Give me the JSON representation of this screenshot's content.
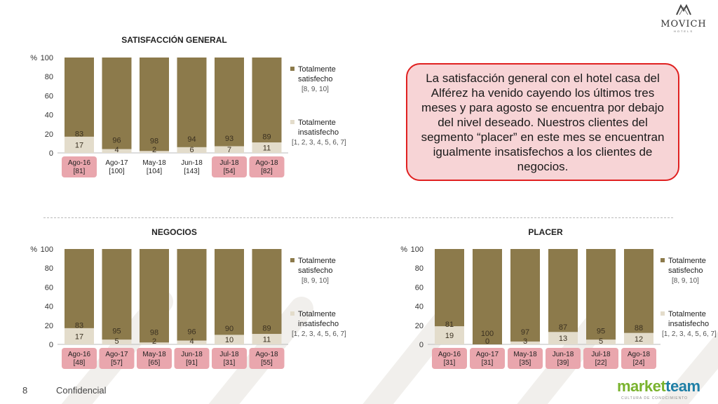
{
  "brand": {
    "logo_text": "MOVICH",
    "logo_sub": "HOTELS"
  },
  "callout_text": "La satisfacción general con el hotel casa del Alférez ha venido cayendo los últimos tres meses y para agosto se encuentra por debajo del nivel deseado. Nuestros clientes del segmento “placer” en este mes se encuentran igualmente insatisfechos a los clientes de negocios.",
  "footer": {
    "page_number": "8",
    "confidential": "Confidencial",
    "partner_a": "market",
    "partner_b": "team",
    "partner_sub": "CULTURA DE CONOCIMIENTO"
  },
  "colors": {
    "satisfied": "#8c7a4b",
    "unsatisfied": "#e3dccb",
    "highlight": "#e9a6ad",
    "callout_border": "#e02020",
    "callout_fill": "#f7d4d6"
  },
  "chart_data": [
    {
      "type": "bar",
      "stacked": true,
      "title": "SATISFACCIÓN GENERAL",
      "ylabel": "%",
      "ylim": [
        0,
        100
      ],
      "yticks": [
        "0",
        "20",
        "40",
        "60",
        "80",
        "100"
      ],
      "categories": [
        "Ago-16",
        "Ago-17",
        "May-18",
        "Jun-18",
        "Jul-18",
        "Ago-18"
      ],
      "sample_sizes": [
        "[81]",
        "[100]",
        "[104]",
        "[143]",
        "[54]",
        "[82]"
      ],
      "highlighted": [
        0,
        4,
        5
      ],
      "series": [
        {
          "name": "Totalmente insatisfecho",
          "legend_lines": [
            "Totalmente",
            "insatisfecho"
          ],
          "range": "[1, 2, 3, 4, 5, 6, 7]",
          "values": [
            17,
            4,
            2,
            6,
            7,
            11
          ]
        },
        {
          "name": "Totalmente satisfecho",
          "legend_lines": [
            "Totalmente",
            "satisfecho"
          ],
          "range": "[8, 9, 10]",
          "values": [
            83,
            96,
            98,
            94,
            93,
            89
          ]
        }
      ]
    },
    {
      "type": "bar",
      "stacked": true,
      "title": "NEGOCIOS",
      "ylabel": "%",
      "ylim": [
        0,
        100
      ],
      "yticks": [
        "0",
        "20",
        "40",
        "60",
        "80",
        "100"
      ],
      "categories": [
        "Ago-16",
        "Ago-17",
        "May-18",
        "Jun-18",
        "Jul-18",
        "Ago-18"
      ],
      "sample_sizes": [
        "[48]",
        "[57]",
        "[65]",
        "[91]",
        "[31]",
        "[55]"
      ],
      "highlighted": [
        0,
        1,
        2,
        3,
        4,
        5
      ],
      "series": [
        {
          "name": "Totalmente insatisfecho",
          "legend_lines": [
            "Totalmente",
            "insatisfecho"
          ],
          "range": "[1, 2, 3, 4, 5, 6, 7]",
          "values": [
            17,
            5,
            2,
            4,
            10,
            11
          ]
        },
        {
          "name": "Totalmente satisfecho",
          "legend_lines": [
            "Totalmente",
            "satisfecho"
          ],
          "range": "[8, 9, 10]",
          "values": [
            83,
            95,
            98,
            96,
            90,
            89
          ]
        }
      ]
    },
    {
      "type": "bar",
      "stacked": true,
      "title": "PLACER",
      "ylabel": "%",
      "ylim": [
        0,
        100
      ],
      "yticks": [
        "0",
        "20",
        "40",
        "60",
        "80",
        "100"
      ],
      "categories": [
        "Ago-16",
        "Ago-17",
        "May-18",
        "Jun-18",
        "Jul-18",
        "Ago-18"
      ],
      "sample_sizes": [
        "[31]",
        "[31]",
        "[35]",
        "[39]",
        "[22]",
        "[24]"
      ],
      "highlighted": [
        0,
        1,
        2,
        3,
        4,
        5
      ],
      "series": [
        {
          "name": "Totalmente insatisfecho",
          "legend_lines": [
            "Totalmente",
            "insatisfecho"
          ],
          "range": "[1, 2, 3, 4, 5, 6, 7]",
          "values": [
            19,
            0,
            3,
            13,
            5,
            12
          ]
        },
        {
          "name": "Totalmente satisfecho",
          "legend_lines": [
            "Totalmente",
            "satisfecho"
          ],
          "range": "[8, 9, 10]",
          "values": [
            81,
            100,
            97,
            87,
            95,
            88
          ]
        }
      ]
    }
  ]
}
